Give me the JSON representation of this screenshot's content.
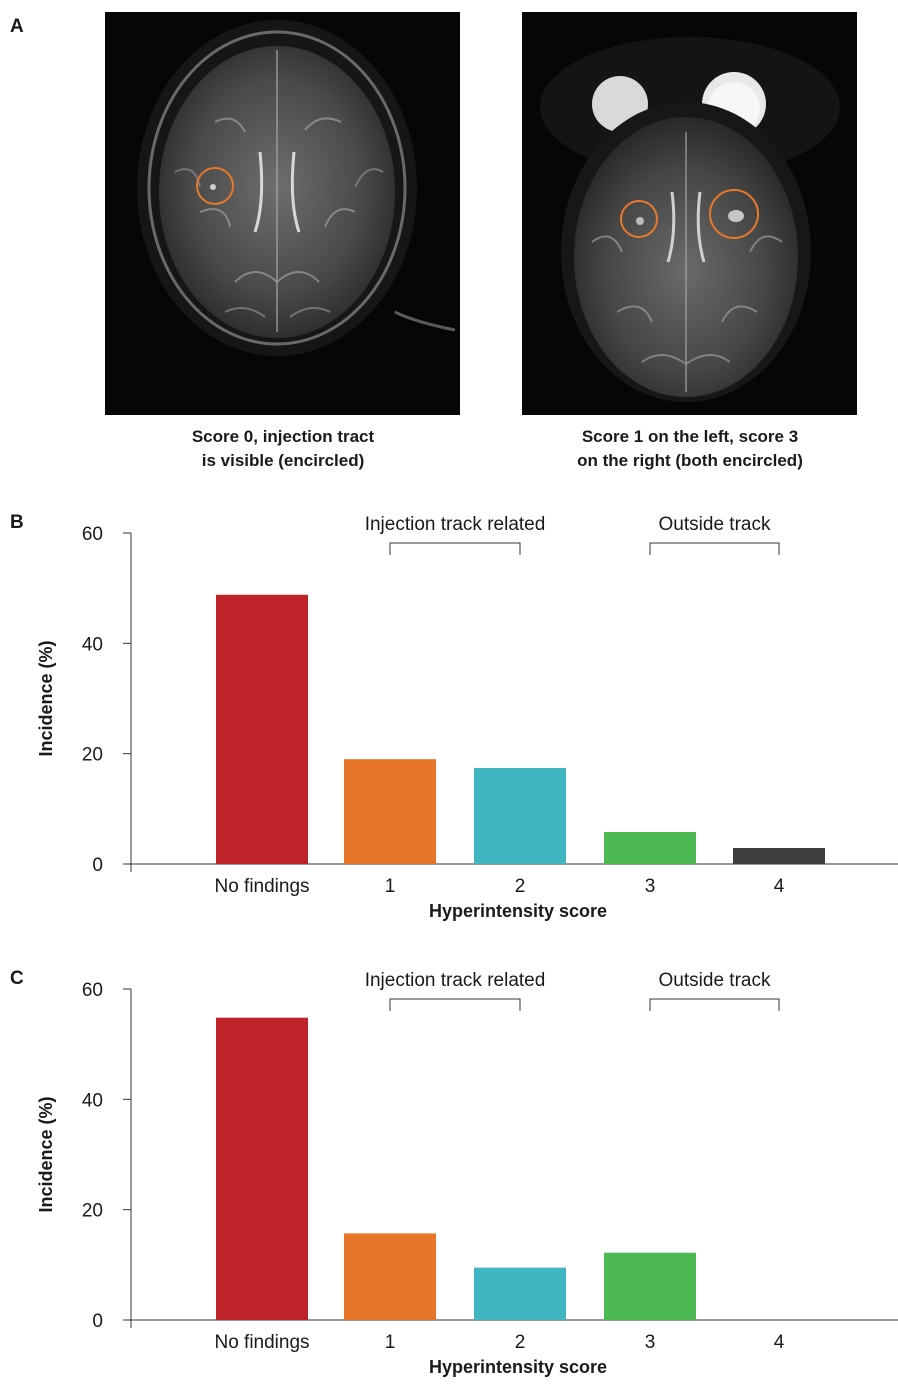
{
  "panels": {
    "a": {
      "letter": "A",
      "images": [
        {
          "caption_line1": "Score 0, injection tract",
          "caption_line2": "is visible (encircled)"
        },
        {
          "caption_line1": "Score 1 on the left, score 3",
          "caption_line2": "on the right (both encircled)"
        }
      ],
      "annotation_color": "#e8792b"
    },
    "b": {
      "letter": "B"
    },
    "c": {
      "letter": "C"
    }
  },
  "chart_data": [
    {
      "type": "bar",
      "panel": "B",
      "categories": [
        "No findings",
        "1",
        "2",
        "3",
        "4"
      ],
      "values": [
        48.8,
        19.0,
        17.4,
        5.8,
        2.9
      ],
      "colors": [
        "#c0222a",
        "#e87628",
        "#42b5c2",
        "#4cb953",
        "#3d3d3d"
      ],
      "xlabel": "Hyperintensity score",
      "ylabel": "Incidence (%)",
      "ylim": [
        0,
        60
      ],
      "yticks": [
        0,
        20,
        40,
        60
      ],
      "brackets": [
        {
          "label": "Injection track related",
          "from": "1",
          "to": "2"
        },
        {
          "label": "Outside track",
          "from": "3",
          "to": "4"
        }
      ],
      "grid": false
    },
    {
      "type": "bar",
      "panel": "C",
      "categories": [
        "No findings",
        "1",
        "2",
        "3",
        "4"
      ],
      "values": [
        54.8,
        15.7,
        9.5,
        12.2,
        0
      ],
      "colors": [
        "#c0222a",
        "#e87628",
        "#42b5c2",
        "#4cb953",
        "#3d3d3d"
      ],
      "xlabel": "Hyperintensity score",
      "ylabel": "Incidence (%)",
      "ylim": [
        0,
        60
      ],
      "yticks": [
        0,
        20,
        40,
        60
      ],
      "brackets": [
        {
          "label": "Injection track related",
          "from": "1",
          "to": "2"
        },
        {
          "label": "Outside track",
          "from": "3",
          "to": "4"
        }
      ],
      "grid": false
    }
  ]
}
